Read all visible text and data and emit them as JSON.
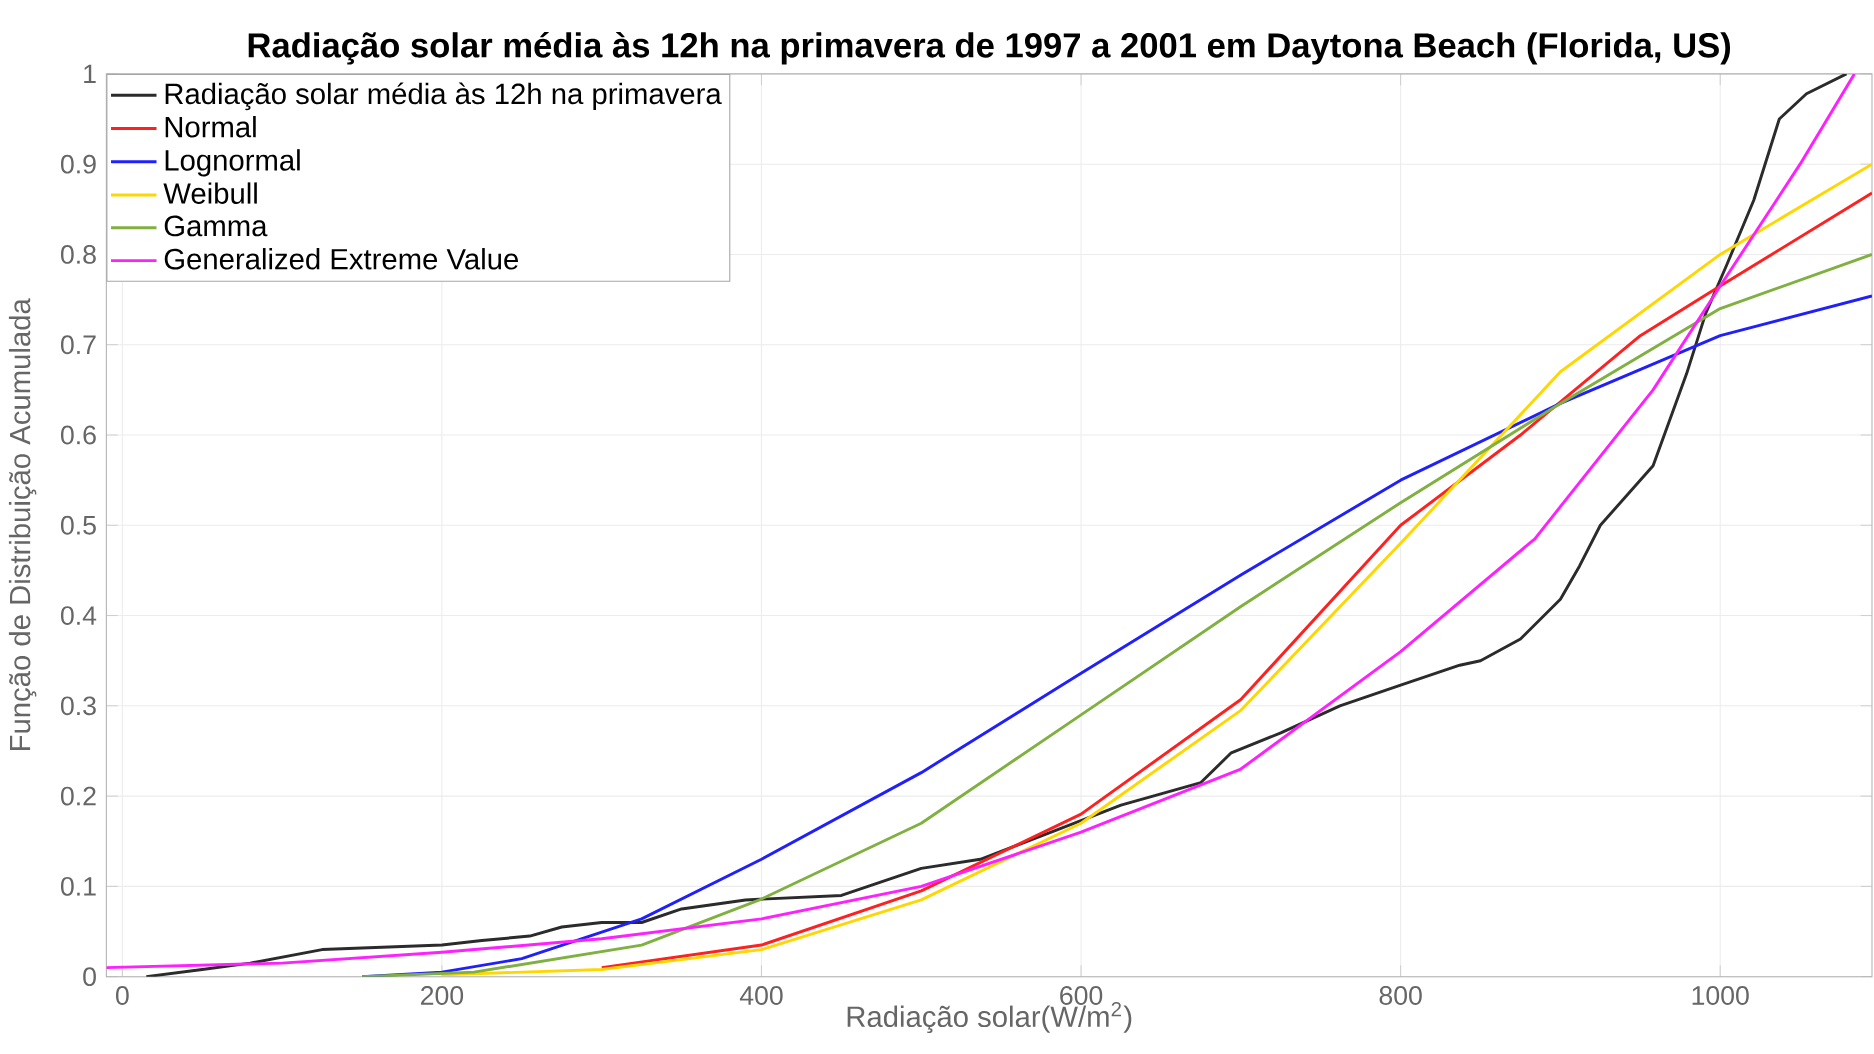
{
  "chart_data": {
    "type": "line",
    "title": "Radiação solar média às 12h na primavera de 1997 a 2001 em Daytona Beach (Florida, US)",
    "xlabel": "Radiação solar(W/m$^{2}$)",
    "ylabel": "Função de Distribuição Acumulada",
    "xlim": [
      -10,
      1095
    ],
    "ylim": [
      0,
      1
    ],
    "xticks": [
      0,
      200,
      400,
      600,
      800,
      1000
    ],
    "yticks": [
      0,
      0.1,
      0.2,
      0.3,
      0.4,
      0.5,
      0.6,
      0.7,
      0.8,
      0.9,
      1
    ],
    "grid": true,
    "legend": "top left",
    "series": [
      {
        "name": "Radiação solar média às 12h na primavera",
        "color": "#2b2b2b",
        "x": [
          15,
          50,
          80,
          125,
          200,
          225,
          255,
          275,
          300,
          325,
          350,
          390,
          450,
          500,
          537,
          587,
          625,
          675,
          694,
          725,
          762,
          800,
          837,
          850,
          875,
          900,
          912,
          925,
          958,
          979,
          991,
          1004,
          1021,
          1037,
          1054,
          1079
        ],
        "values": [
          0,
          0.008,
          0.015,
          0.03,
          0.035,
          0.04,
          0.045,
          0.055,
          0.06,
          0.06,
          0.075,
          0.085,
          0.09,
          0.12,
          0.13,
          0.164,
          0.19,
          0.215,
          0.248,
          0.27,
          0.3,
          0.323,
          0.345,
          0.35,
          0.374,
          0.418,
          0.455,
          0.5,
          0.566,
          0.668,
          0.735,
          0.788,
          0.86,
          0.95,
          0.978,
          1.0
        ]
      },
      {
        "name": "Normal",
        "color": "#ff2020",
        "x": [
          300,
          400,
          500,
          600,
          700,
          800,
          875,
          950,
          1000,
          1095
        ],
        "values": [
          0.01,
          0.035,
          0.095,
          0.18,
          0.307,
          0.5,
          0.6,
          0.71,
          0.765,
          0.868
        ]
      },
      {
        "name": "Lognormal",
        "color": "#2020ff",
        "x": [
          150,
          200,
          250,
          325,
          400,
          500,
          600,
          700,
          800,
          900,
          1000,
          1095
        ],
        "values": [
          0,
          0.005,
          0.02,
          0.064,
          0.13,
          0.226,
          0.336,
          0.445,
          0.55,
          0.635,
          0.71,
          0.754
        ]
      },
      {
        "name": "Weibull",
        "color": "#ffd700",
        "x": [
          200,
          300,
          400,
          500,
          600,
          700,
          800,
          900,
          1000,
          1095
        ],
        "values": [
          0.002,
          0.008,
          0.03,
          0.085,
          0.17,
          0.295,
          0.48,
          0.67,
          0.8,
          0.9
        ]
      },
      {
        "name": "Gamma",
        "color": "#80b040",
        "x": [
          150,
          220,
          325,
          400,
          500,
          600,
          700,
          800,
          900,
          1000,
          1095
        ],
        "values": [
          0,
          0.005,
          0.035,
          0.086,
          0.17,
          0.29,
          0.41,
          0.525,
          0.635,
          0.74,
          0.8
        ]
      },
      {
        "name": "Generalized Extreme Value",
        "color": "#ff20ff",
        "x": [
          -10,
          100,
          200,
          300,
          400,
          500,
          600,
          700,
          800,
          884,
          958,
          1000,
          1050,
          1084
        ],
        "values": [
          0.01,
          0.015,
          0.027,
          0.042,
          0.064,
          0.1,
          0.16,
          0.23,
          0.36,
          0.485,
          0.65,
          0.765,
          0.9,
          1.0
        ]
      }
    ]
  }
}
